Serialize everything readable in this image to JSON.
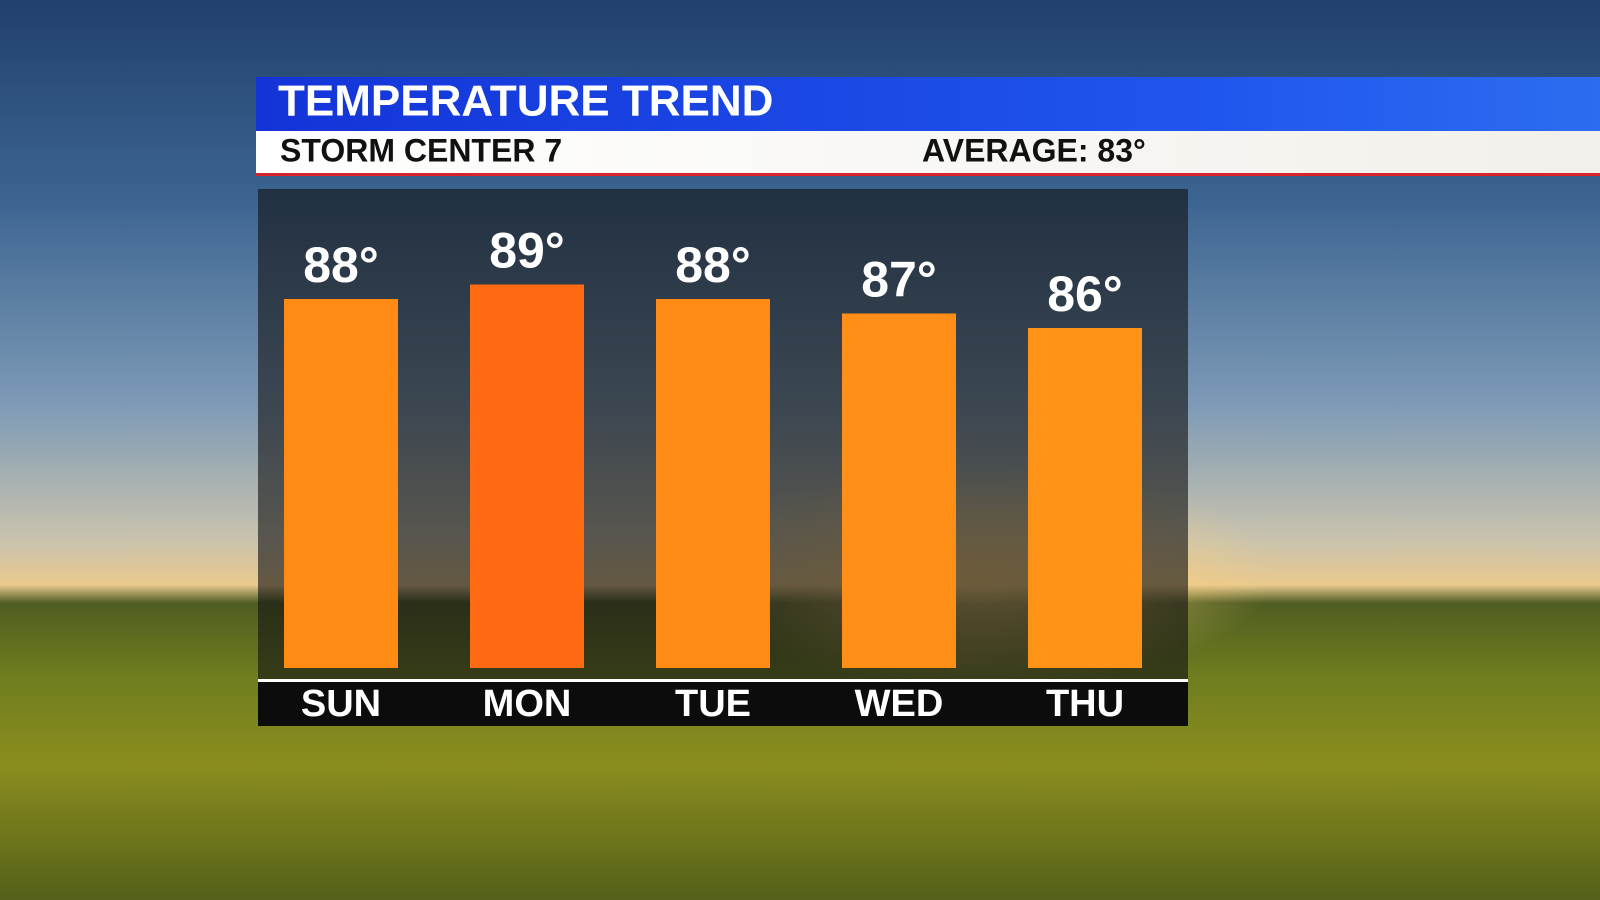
{
  "chart_data": {
    "type": "bar",
    "title": "TEMPERATURE TREND",
    "subtitle": "STORM CENTER 7",
    "annotation": "AVERAGE: 83°",
    "categories": [
      "SUN",
      "MON",
      "TUE",
      "WED",
      "THU"
    ],
    "values": [
      88,
      89,
      88,
      87,
      86
    ],
    "value_labels": [
      "88°",
      "89°",
      "88°",
      "87°",
      "86°"
    ],
    "colors": [
      "#ff8a14",
      "#ff6a12",
      "#ff8a14",
      "#ff8f16",
      "#ff9317"
    ]
  }
}
